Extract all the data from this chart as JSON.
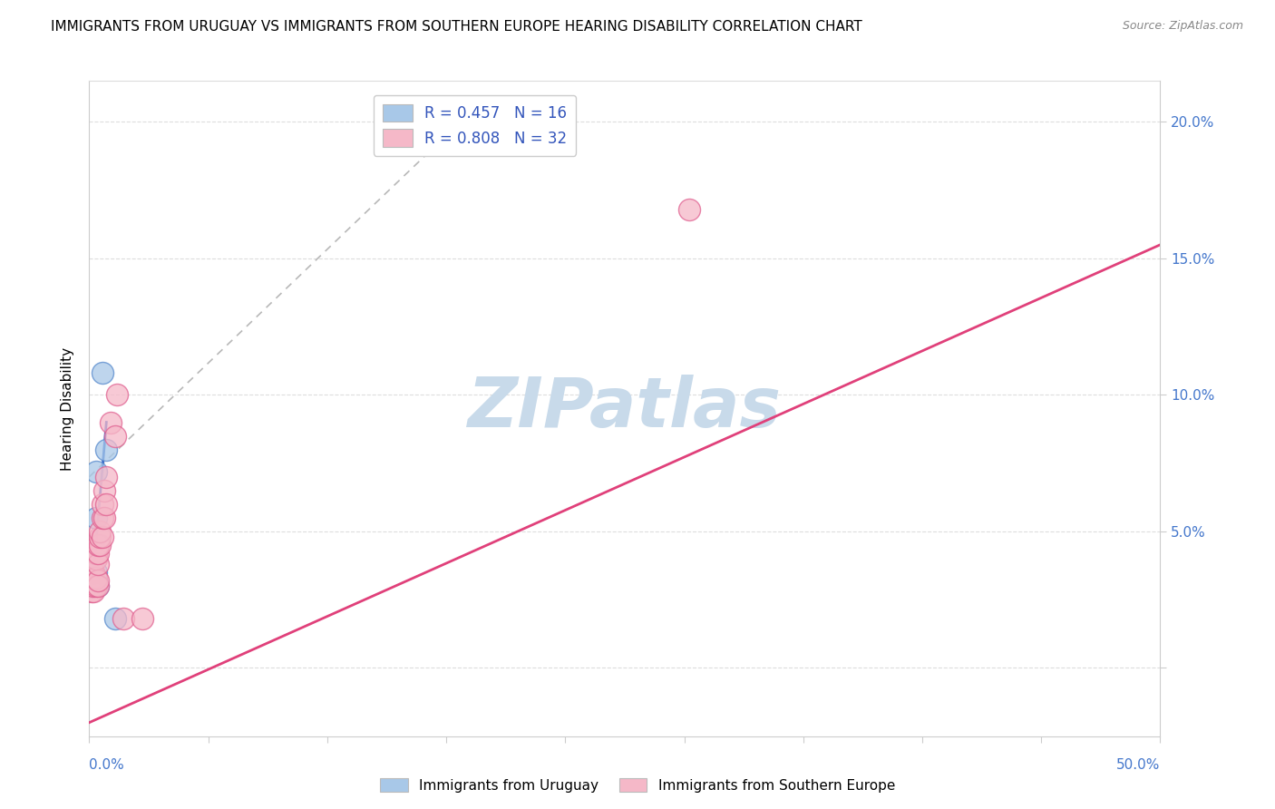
{
  "title": "IMMIGRANTS FROM URUGUAY VS IMMIGRANTS FROM SOUTHERN EUROPE HEARING DISABILITY CORRELATION CHART",
  "source": "Source: ZipAtlas.com",
  "ylabel": "Hearing Disability",
  "watermark": "ZIPatlas",
  "legend_entries": [
    {
      "label": "R = 0.457   N = 16",
      "color": "#a8c8e8"
    },
    {
      "label": "R = 0.808   N = 32",
      "color": "#f5b8c8"
    }
  ],
  "legend_bottom": [
    {
      "label": "Immigrants from Uruguay",
      "color": "#a8c8e8"
    },
    {
      "label": "Immigrants from Southern Europe",
      "color": "#f5b8c8"
    }
  ],
  "ytick_vals": [
    0.0,
    0.05,
    0.1,
    0.15,
    0.2
  ],
  "ytick_labels": [
    "",
    "5.0%",
    "10.0%",
    "15.0%",
    "20.0%"
  ],
  "xlim": [
    0.0,
    0.5
  ],
  "ylim": [
    -0.025,
    0.215
  ],
  "uruguay_points": [
    [
      0.001,
      0.03
    ],
    [
      0.001,
      0.031
    ],
    [
      0.001,
      0.032
    ],
    [
      0.002,
      0.03
    ],
    [
      0.002,
      0.031
    ],
    [
      0.002,
      0.032
    ],
    [
      0.002,
      0.033
    ],
    [
      0.002,
      0.034
    ],
    [
      0.003,
      0.032
    ],
    [
      0.003,
      0.035
    ],
    [
      0.003,
      0.055
    ],
    [
      0.003,
      0.072
    ],
    [
      0.004,
      0.03
    ],
    [
      0.006,
      0.108
    ],
    [
      0.008,
      0.08
    ],
    [
      0.012,
      0.018
    ]
  ],
  "southern_europe_points": [
    [
      0.001,
      0.028
    ],
    [
      0.001,
      0.03
    ],
    [
      0.001,
      0.031
    ],
    [
      0.002,
      0.028
    ],
    [
      0.002,
      0.03
    ],
    [
      0.002,
      0.033
    ],
    [
      0.002,
      0.035
    ],
    [
      0.003,
      0.03
    ],
    [
      0.003,
      0.033
    ],
    [
      0.003,
      0.04
    ],
    [
      0.003,
      0.042
    ],
    [
      0.004,
      0.03
    ],
    [
      0.004,
      0.032
    ],
    [
      0.004,
      0.038
    ],
    [
      0.004,
      0.042
    ],
    [
      0.004,
      0.045
    ],
    [
      0.005,
      0.045
    ],
    [
      0.005,
      0.048
    ],
    [
      0.005,
      0.05
    ],
    [
      0.006,
      0.048
    ],
    [
      0.006,
      0.055
    ],
    [
      0.006,
      0.06
    ],
    [
      0.007,
      0.055
    ],
    [
      0.007,
      0.065
    ],
    [
      0.008,
      0.06
    ],
    [
      0.008,
      0.07
    ],
    [
      0.01,
      0.09
    ],
    [
      0.012,
      0.085
    ],
    [
      0.013,
      0.1
    ],
    [
      0.016,
      0.018
    ],
    [
      0.025,
      0.018
    ],
    [
      0.28,
      0.168
    ]
  ],
  "southern_europe_line": {
    "x0": 0.0,
    "y0": -0.02,
    "x1": 0.5,
    "y1": 0.155
  },
  "uruguay_line": {
    "x0": 0.001,
    "y0": 0.026,
    "x1": 0.008,
    "y1": 0.09
  },
  "diagonal_line": {
    "x0": 0.0,
    "y0": 0.07,
    "x1": 0.18,
    "y1": 0.205
  },
  "uruguay_line_color": "#3366cc",
  "southern_europe_line_color": "#e0407a",
  "diagonal_color": "#b8b8b8",
  "scatter_uruguay_color": "#a8c8e8",
  "scatter_uruguay_edge": "#5588cc",
  "scatter_southern_color": "#f5b8c8",
  "scatter_southern_edge": "#e06090",
  "scatter_size": 300,
  "title_fontsize": 11,
  "axis_label_fontsize": 11,
  "tick_fontsize": 11,
  "legend_fontsize": 12,
  "watermark_color": "#c8daea",
  "watermark_fontsize": 55
}
